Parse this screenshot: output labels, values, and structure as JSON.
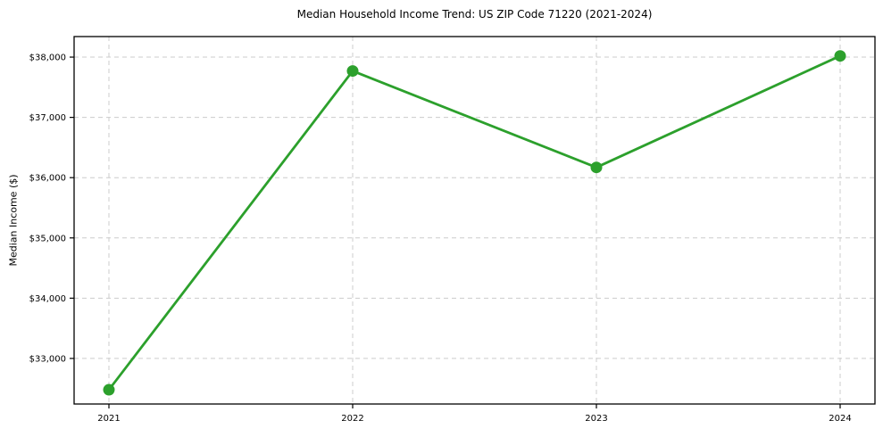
{
  "chart_data": {
    "type": "line",
    "title": "Median Household Income Trend: US ZIP Code 71220 (2021-2024)",
    "xlabel": "",
    "ylabel": "Median Income ($)",
    "categories": [
      "2021",
      "2022",
      "2023",
      "2024"
    ],
    "values": [
      32480,
      37770,
      36170,
      38020
    ],
    "ylim": [
      32244,
      38341
    ],
    "yticks": [
      {
        "value": 33000,
        "label": "$33,000"
      },
      {
        "value": 34000,
        "label": "$34,000"
      },
      {
        "value": 35000,
        "label": "$35,000"
      },
      {
        "value": 36000,
        "label": "$36,000"
      },
      {
        "value": 37000,
        "label": "$37,000"
      },
      {
        "value": 38000,
        "label": "$38,000"
      }
    ],
    "grid": true,
    "grid_style": "dashed",
    "legend": "none",
    "colors": {
      "line": "#2ca02c",
      "marker": "#2ca02c",
      "grid": "#cccccc",
      "border": "#000000",
      "text": "#000000"
    }
  }
}
